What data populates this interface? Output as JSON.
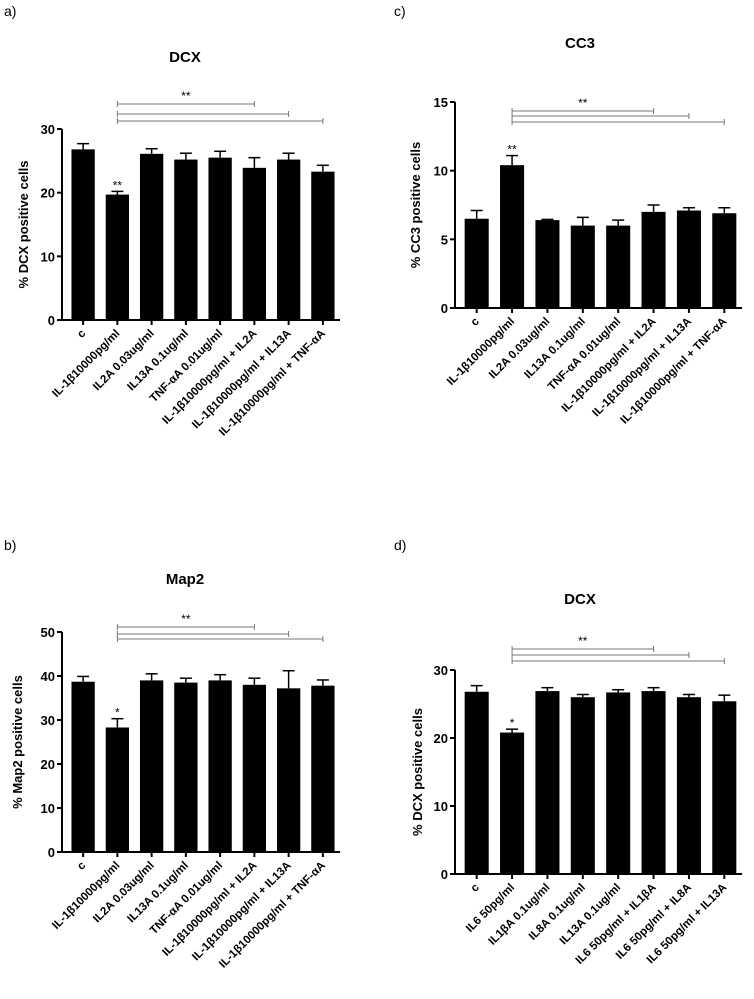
{
  "chart_data": [
    {
      "panel_label": "a)",
      "type": "bar",
      "title": "DCX",
      "ylabel": "% DCX positive cells",
      "xlabel": "",
      "ylim": [
        0,
        30
      ],
      "yticks": [
        0,
        10,
        20,
        30
      ],
      "categories": [
        "c",
        "IL-1β10000pg/ml",
        "IL2A 0.03ug/ml",
        "IL13A 0.1ug/ml",
        "TNF-αA 0.01ug/ml",
        "IL-1β10000pg/ml + IL2A",
        "IL-1β10000pg/ml + IL13A",
        "IL-1β10000pg/ml + TNF-αA"
      ],
      "values": [
        26.8,
        19.7,
        26.1,
        25.2,
        25.5,
        23.9,
        25.2,
        23.3
      ],
      "errors": [
        0.9,
        0.5,
        0.8,
        1.0,
        1.0,
        1.6,
        1.0,
        1.0
      ],
      "bar_annotations": [
        "",
        "**",
        "",
        "",
        "",
        "",
        "",
        ""
      ],
      "comparison_label": "**",
      "comparisons": [
        [
          1,
          5
        ],
        [
          1,
          6
        ],
        [
          1,
          7
        ]
      ],
      "grid": false
    },
    {
      "panel_label": "c)",
      "type": "bar",
      "title": "CC3",
      "ylabel": "% CC3 positive cells",
      "xlabel": "",
      "ylim": [
        0,
        15
      ],
      "yticks": [
        0,
        5,
        10,
        15
      ],
      "categories": [
        "c",
        "IL-1β10000pg/ml",
        "IL2A 0.03ug/ml",
        "IL13A 0.1ug/ml",
        "TNF-αA 0.01ug/ml",
        "IL-1β10000pg/ml + IL2A",
        "IL-1β10000pg/ml + IL13A",
        "IL-1β10000pg/ml + TNF-αA"
      ],
      "values": [
        6.5,
        10.4,
        6.4,
        6.0,
        6.0,
        7.0,
        7.1,
        6.9
      ],
      "errors": [
        0.6,
        0.7,
        0.05,
        0.6,
        0.4,
        0.5,
        0.2,
        0.4
      ],
      "bar_annotations": [
        "",
        "**",
        "",
        "",
        "",
        "",
        "",
        ""
      ],
      "comparison_label": "**",
      "comparisons": [
        [
          1,
          5
        ],
        [
          1,
          6
        ],
        [
          1,
          7
        ]
      ],
      "grid": false
    },
    {
      "panel_label": "b)",
      "type": "bar",
      "title": "Map2",
      "ylabel": "% Map2 positive cells",
      "xlabel": "",
      "ylim": [
        0,
        50
      ],
      "yticks": [
        0,
        10,
        20,
        30,
        40,
        50
      ],
      "categories": [
        "c",
        "IL-1β10000pg/ml",
        "IL2A 0.03ug/ml",
        "IL13A 0.1ug/ml",
        "TNF-αA 0.01ug/ml",
        "IL-1β10000pg/ml + IL2A",
        "IL-1β10000pg/ml + IL13A",
        "IL-1β10000pg/ml + TNF-αA"
      ],
      "values": [
        38.7,
        28.3,
        39.0,
        38.5,
        39.0,
        38.0,
        37.2,
        37.8
      ],
      "errors": [
        1.2,
        2.0,
        1.5,
        1.0,
        1.3,
        1.5,
        4.0,
        1.3
      ],
      "bar_annotations": [
        "",
        "*",
        "",
        "",
        "",
        "",
        "",
        ""
      ],
      "comparison_label": "**",
      "comparisons": [
        [
          1,
          5
        ],
        [
          1,
          6
        ],
        [
          1,
          7
        ]
      ],
      "grid": false
    },
    {
      "panel_label": "d)",
      "type": "bar",
      "title": "DCX",
      "ylabel": "% DCX positive cells",
      "xlabel": "",
      "ylim": [
        0,
        30
      ],
      "yticks": [
        0,
        10,
        20,
        30
      ],
      "categories": [
        "c",
        "IL6 50pg/ml",
        "IL1βA 0.1ug/ml",
        "IL8A 0.1ug/ml",
        "IL13A 0.1ug/ml",
        "IL6 50pg/ml + IL1βA",
        "IL6 50pg/ml + IL8A",
        "IL6 50pg/ml + IL13A"
      ],
      "values": [
        26.8,
        20.8,
        26.9,
        26.0,
        26.7,
        26.9,
        26.0,
        25.4
      ],
      "errors": [
        0.9,
        0.5,
        0.5,
        0.4,
        0.4,
        0.5,
        0.4,
        0.9
      ],
      "bar_annotations": [
        "",
        "*",
        "",
        "",
        "",
        "",
        "",
        ""
      ],
      "comparison_label": "**",
      "comparisons": [
        [
          1,
          5
        ],
        [
          1,
          6
        ],
        [
          1,
          7
        ]
      ],
      "grid": false
    }
  ]
}
